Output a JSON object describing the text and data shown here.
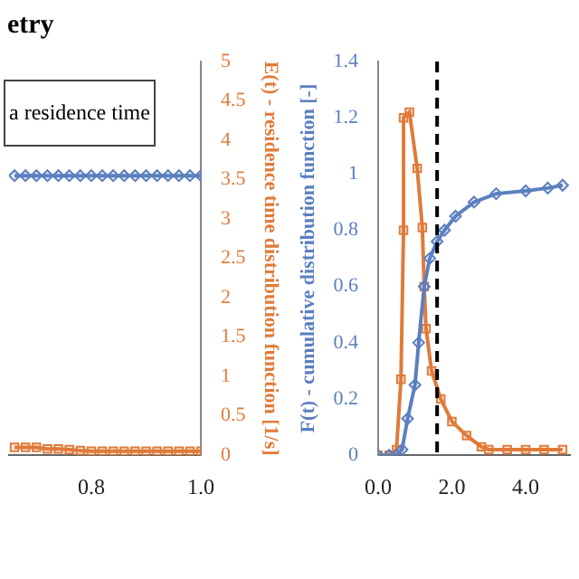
{
  "chart_data": [
    {
      "type": "line",
      "title": "etry",
      "annotations": [
        "a residence time"
      ],
      "y2label": "E(t) - residence time distribution function [1/s]",
      "xlim": [
        0.65,
        1.0
      ],
      "xticks": [
        {
          "value": 0.8,
          "label": "0.8"
        },
        {
          "value": 1.0,
          "label": "1.0"
        }
      ],
      "y2lim": [
        0,
        5
      ],
      "y2ticks": [
        0,
        0.5,
        1,
        1.5,
        2,
        2.5,
        3,
        3.5,
        4,
        4.5,
        5
      ],
      "grid": false,
      "series": [
        {
          "color": "#5b7fbf",
          "marker": "diamond",
          "axis": "y2",
          "x": [
            0.66,
            0.68,
            0.7,
            0.72,
            0.74,
            0.76,
            0.78,
            0.8,
            0.82,
            0.84,
            0.86,
            0.88,
            0.9,
            0.92,
            0.94,
            0.96,
            0.98,
            1.0
          ],
          "values": [
            3.55,
            3.55,
            3.55,
            3.55,
            3.55,
            3.55,
            3.55,
            3.55,
            3.55,
            3.55,
            3.55,
            3.55,
            3.55,
            3.55,
            3.55,
            3.55,
            3.55,
            3.55
          ]
        },
        {
          "color": "#e07b39",
          "marker": "square",
          "axis": "y2",
          "x": [
            0.66,
            0.68,
            0.7,
            0.72,
            0.74,
            0.76,
            0.78,
            0.8,
            0.82,
            0.84,
            0.86,
            0.88,
            0.9,
            0.92,
            0.94,
            0.96,
            0.98,
            1.0
          ],
          "values": [
            0.1,
            0.1,
            0.1,
            0.08,
            0.08,
            0.07,
            0.06,
            0.05,
            0.05,
            0.05,
            0.05,
            0.05,
            0.05,
            0.05,
            0.05,
            0.05,
            0.05,
            0.05
          ]
        }
      ]
    },
    {
      "type": "line",
      "ylabel": "F(t) - cumulative distribution function [-]",
      "xlim": [
        0,
        5.2
      ],
      "xticks": [
        {
          "value": 0,
          "label": "0.0"
        },
        {
          "value": 2,
          "label": "2.0"
        },
        {
          "value": 4,
          "label": "4.0"
        }
      ],
      "ylim": [
        0,
        1.4
      ],
      "yticks": [
        0,
        0.2,
        0.4,
        0.6,
        0.8,
        1,
        1.2,
        1.4
      ],
      "grid": false,
      "ref_lines": [
        {
          "axis": "x",
          "value": 1.6,
          "color": "#000000",
          "line_style": "dashed"
        }
      ],
      "series": [
        {
          "color": "#5b7fbf",
          "marker": "diamond",
          "x": [
            0,
            0.3,
            0.5,
            0.65,
            0.8,
            1.0,
            1.1,
            1.25,
            1.4,
            1.6,
            1.8,
            2.1,
            2.6,
            3.2,
            4.0,
            4.6,
            5.0
          ],
          "values": [
            0,
            0,
            0,
            0.02,
            0.13,
            0.25,
            0.4,
            0.6,
            0.7,
            0.76,
            0.8,
            0.85,
            0.9,
            0.93,
            0.94,
            0.95,
            0.96
          ]
        },
        {
          "color": "#e07b39",
          "marker": "square",
          "x": [
            0,
            0.3,
            0.5,
            0.62,
            0.69,
            0.69,
            0.85,
            1.06,
            1.2,
            1.25,
            1.3,
            1.45,
            1.7,
            2.0,
            2.4,
            2.8,
            3.0,
            3.5,
            4.0,
            4.5,
            5.0
          ],
          "values": [
            0,
            0,
            0.02,
            0.27,
            0.8,
            1.2,
            1.22,
            1.02,
            0.81,
            0.6,
            0.45,
            0.3,
            0.2,
            0.12,
            0.07,
            0.03,
            0.02,
            0.02,
            0.02,
            0.02,
            0.02
          ]
        }
      ]
    }
  ]
}
